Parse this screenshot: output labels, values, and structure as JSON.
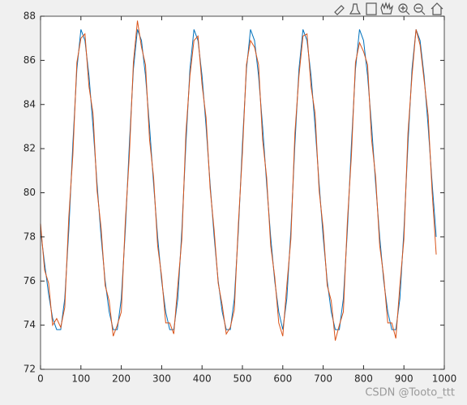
{
  "chart_data": {
    "type": "line",
    "x": [
      0,
      10,
      20,
      30,
      40,
      50,
      60,
      70,
      80,
      90,
      100,
      110,
      120,
      130,
      140,
      150,
      160,
      170,
      180,
      190,
      200,
      210,
      220,
      230,
      240,
      250,
      260,
      270,
      280,
      290,
      300,
      310,
      320,
      330,
      340,
      350,
      360,
      370,
      380,
      390,
      400,
      410,
      420,
      430,
      440,
      450,
      460,
      470,
      480,
      490,
      500,
      510,
      520,
      530,
      540,
      550,
      560,
      570,
      580,
      590,
      600,
      610,
      620,
      630,
      640,
      650,
      660,
      670,
      680,
      690,
      700,
      710,
      720,
      730,
      740,
      750,
      760,
      770,
      780,
      790,
      800,
      810,
      820,
      830,
      840,
      850,
      860,
      870,
      880,
      890,
      900,
      910,
      920,
      930,
      940,
      950,
      960,
      970,
      980
    ],
    "series": [
      {
        "color": "#0072bd",
        "values": [
          78.3,
          76.8,
          75.4,
          74.3,
          73.8,
          73.8,
          75.2,
          78.3,
          82.2,
          85.6,
          87.4,
          86.9,
          85.3,
          83.0,
          80.4,
          78.0,
          76.0,
          74.6,
          73.8,
          73.8,
          75.2,
          78.3,
          82.2,
          85.6,
          87.4,
          86.9,
          85.3,
          83.0,
          80.4,
          78.0,
          76.0,
          74.6,
          73.8,
          73.8,
          75.2,
          78.3,
          82.2,
          85.6,
          87.4,
          86.9,
          85.3,
          83.0,
          80.4,
          78.0,
          76.0,
          74.6,
          73.8,
          73.8,
          75.2,
          78.3,
          82.2,
          85.6,
          87.4,
          86.9,
          85.3,
          83.0,
          80.4,
          78.0,
          76.0,
          74.6,
          73.8,
          75.2,
          78.3,
          82.2,
          85.6,
          87.4,
          86.9,
          85.3,
          83.0,
          80.4,
          78.0,
          76.0,
          74.6,
          73.8,
          73.8,
          75.2,
          78.3,
          82.2,
          85.6,
          87.4,
          86.9,
          85.3,
          83.0,
          80.4,
          78.0,
          76.0,
          74.6,
          73.8,
          73.8,
          75.2,
          78.3,
          82.2,
          85.6,
          87.4,
          86.9,
          85.3,
          83.0,
          80.4,
          78.0
        ]
      },
      {
        "color": "#d95319",
        "values": [
          78.6,
          76.5,
          75.9,
          74.0,
          74.3,
          73.9,
          74.8,
          78.9,
          81.7,
          85.9,
          87.0,
          87.2,
          84.8,
          83.6,
          80.1,
          78.4,
          75.8,
          75.1,
          73.5,
          74.0,
          74.6,
          78.7,
          81.7,
          85.9,
          87.8,
          86.6,
          85.8,
          82.4,
          80.7,
          77.6,
          76.2,
          74.1,
          74.1,
          73.6,
          75.8,
          77.9,
          82.7,
          85.3,
          86.9,
          87.1,
          84.9,
          83.4,
          80.2,
          78.3,
          75.9,
          74.9,
          73.6,
          73.9,
          74.7,
          78.6,
          81.8,
          85.8,
          86.9,
          86.6,
          85.8,
          82.4,
          80.7,
          77.6,
          76.2,
          74.1,
          73.5,
          75.8,
          77.9,
          82.7,
          85.3,
          87.1,
          87.2,
          84.8,
          83.6,
          80.1,
          78.4,
          75.8,
          75.1,
          73.3,
          74.0,
          74.6,
          78.7,
          81.7,
          85.9,
          86.8,
          86.4,
          85.8,
          82.4,
          80.7,
          77.6,
          76.2,
          74.1,
          74.1,
          73.4,
          75.8,
          77.9,
          82.7,
          85.3,
          87.4,
          86.7,
          85.1,
          83.5,
          80.0,
          77.2
        ]
      }
    ],
    "xlim": [
      0,
      1000
    ],
    "xticks": [
      0,
      100,
      200,
      300,
      400,
      500,
      600,
      700,
      800,
      900,
      1000
    ],
    "ylim": [
      72,
      88
    ],
    "yticks": [
      72,
      74,
      76,
      78,
      80,
      82,
      84,
      86,
      88
    ],
    "grid": false
  },
  "watermark": "CSDN @Tooto_ttt"
}
